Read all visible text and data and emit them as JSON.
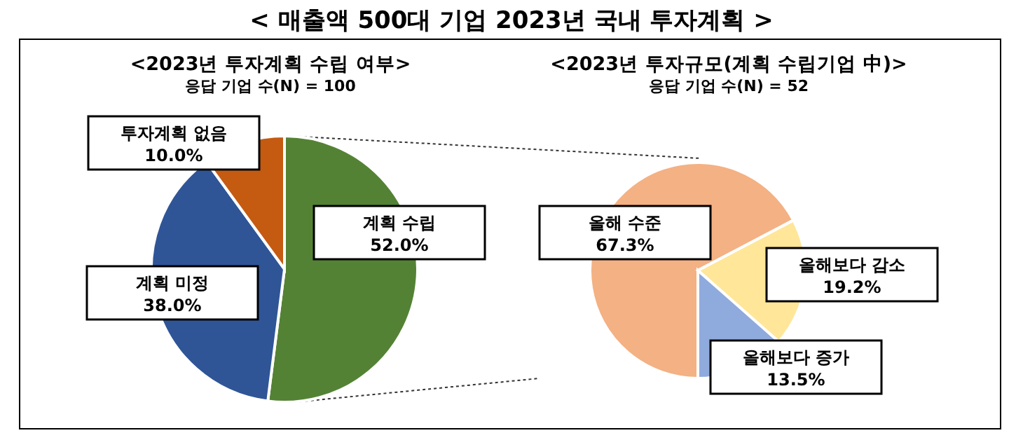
{
  "chart_data": [
    {
      "type": "pie",
      "title": "< 매출액 500대 기업 2023년 국내 투자계획 >",
      "subtitle": "<2023년 투자계획 수립 여부>",
      "annotations": [
        "응답 기업 수(N) = 100"
      ],
      "categories": [
        "계획 수립",
        "계획 미정",
        "투자계획 없음"
      ],
      "values": [
        52.0,
        38.0,
        10.0
      ],
      "value_labels": [
        "52.0%",
        "38.0%",
        "10.0%"
      ],
      "colors": [
        "#548235",
        "#2f5597",
        "#c55a11"
      ]
    },
    {
      "type": "pie",
      "subtitle": "<2023년 투자규모(계획 수립기업 中)>",
      "annotations": [
        "응답 기업 수(N) = 52"
      ],
      "categories": [
        "올해 수준",
        "올해보다 감소",
        "올해보다 증가"
      ],
      "values": [
        67.3,
        19.2,
        13.5
      ],
      "value_labels": [
        "67.3%",
        "19.2%",
        "13.5%"
      ],
      "colors": [
        "#f4b183",
        "#ffe699",
        "#8faadc"
      ]
    }
  ]
}
